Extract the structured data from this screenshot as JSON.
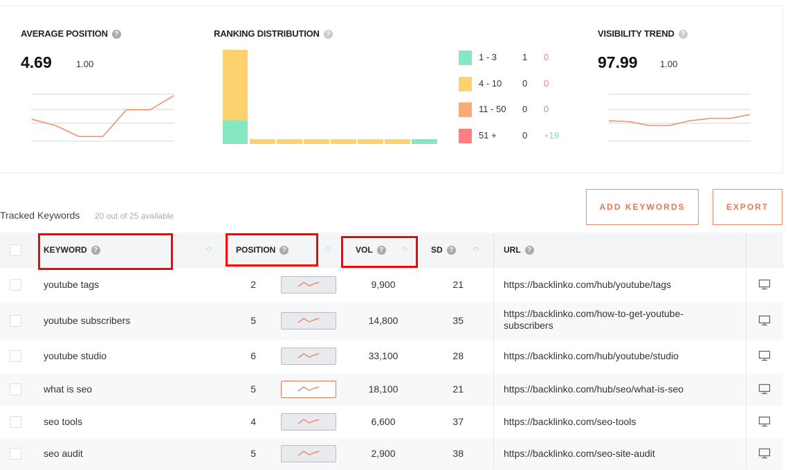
{
  "summary": {
    "average_position": {
      "title": "AVERAGE POSITION",
      "value": "4.69",
      "change": "1.00",
      "trend": [
        1.4,
        1.0,
        0.3,
        0.3,
        2.0,
        2.0,
        2.9
      ]
    },
    "ranking_distribution": {
      "title": "RANKING DISTRIBUTION",
      "legend": [
        {
          "label": "1 - 3",
          "count": "1",
          "change": "0",
          "color": "#86e8c0",
          "change_color": "#f08080"
        },
        {
          "label": "4 - 10",
          "count": "0",
          "change": "0",
          "color": "#fdd26e",
          "change_color": "#f08080"
        },
        {
          "label": "11 - 50",
          "count": "0",
          "change": "0",
          "color": "#fda877",
          "change_color": "#f08080"
        },
        {
          "label": "51 +",
          "count": "0",
          "change": "+19",
          "color": "#ff7f80",
          "change_color": "#7ee0b0"
        }
      ],
      "bars": [
        {
          "top_12": 1,
          "rest": 3
        },
        {
          "rest_color": "yellow"
        },
        {
          "rest_color": "yellow"
        },
        {
          "rest_color": "yellow"
        },
        {
          "rest_color": "yellow"
        },
        {
          "rest_color": "yellow"
        },
        {
          "rest_color": "yellow"
        },
        {
          "rest_color": "green"
        }
      ]
    },
    "visibility_trend": {
      "title": "VISIBILITY TREND",
      "value": "97.99",
      "change": "1.00",
      "trend": [
        1.3,
        1.25,
        1.0,
        1.0,
        1.3,
        1.45,
        1.45,
        1.7
      ]
    }
  },
  "toolbar": {
    "tracked_label": "Tracked Keywords",
    "available": "20 out of 25 available",
    "add_keywords": "ADD KEYWORDS",
    "export": "EXPORT"
  },
  "table": {
    "headers": {
      "keyword": "KEYWORD",
      "position": "POSITION",
      "vol": "VOL",
      "sd": "SD",
      "url": "URL"
    },
    "rows": [
      {
        "keyword": "youtube tags",
        "position": "2",
        "vol": "9,900",
        "sd": "21",
        "url": "https://backlinko.com/hub/youtube/tags",
        "url2": ""
      },
      {
        "keyword": "youtube subscribers",
        "position": "5",
        "vol": "14,800",
        "sd": "35",
        "url": "https://backlinko.com/how-to-get-youtube-",
        "url2": "subscribers"
      },
      {
        "keyword": "youtube studio",
        "position": "6",
        "vol": "33,100",
        "sd": "28",
        "url": "https://backlinko.com/hub/youtube/studio",
        "url2": ""
      },
      {
        "keyword": "what is seo",
        "position": "5",
        "vol": "18,100",
        "sd": "21",
        "url": "https://backlinko.com/hub/seo/what-is-seo",
        "url2": ""
      },
      {
        "keyword": "seo tools",
        "position": "4",
        "vol": "6,600",
        "sd": "37",
        "url": "https://backlinko.com/seo-tools",
        "url2": ""
      },
      {
        "keyword": "seo audit",
        "position": "5",
        "vol": "2,900",
        "sd": "38",
        "url": "https://backlinko.com/seo-site-audit",
        "url2": ""
      }
    ]
  },
  "colors": {
    "accent": "#f0734e",
    "highlight": "#ff0000"
  }
}
